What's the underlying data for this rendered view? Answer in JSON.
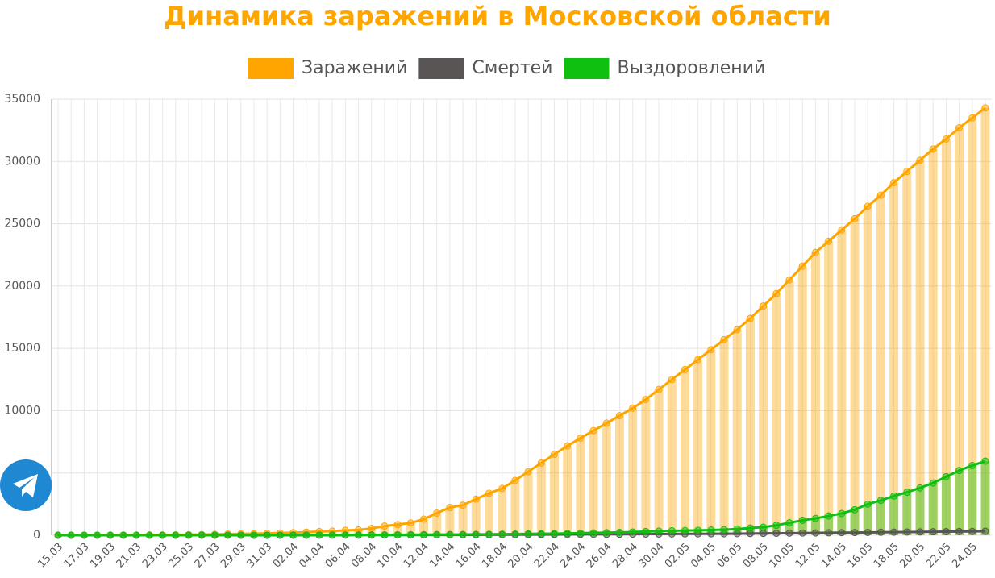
{
  "chart_data": {
    "type": "line",
    "title": "Динамика заражений в Московской области",
    "categories": [
      "15.03",
      null,
      "17.03",
      null,
      "19.03",
      null,
      "21.03",
      null,
      "23.03",
      null,
      "25.03",
      null,
      "27.03",
      null,
      "29.03",
      null,
      "31.03",
      null,
      "02.04",
      null,
      "04.04",
      null,
      "06.04",
      null,
      "08.04",
      null,
      "10.04",
      null,
      "12.04",
      null,
      "14.04",
      null,
      "16.04",
      null,
      "18.04",
      null,
      "20.04",
      null,
      "22.04",
      null,
      "24.04",
      null,
      "26.04",
      null,
      "28.04",
      null,
      "30.04",
      null,
      "02.05",
      null,
      "04.05",
      null,
      "06.05",
      null,
      "08.05",
      null,
      "10.05",
      null,
      "12.05",
      null,
      "14.05",
      null,
      "16.05",
      null,
      "18.05",
      null,
      "20.05",
      null,
      "22.05",
      null,
      "24.05",
      null
    ],
    "series": [
      {
        "name": "Заражений",
        "color": "#ffa500",
        "bars": true,
        "values": [
          5,
          7,
          10,
          12,
          15,
          18,
          20,
          24,
          26,
          35,
          45,
          60,
          75,
          95,
          110,
          130,
          150,
          180,
          210,
          250,
          300,
          330,
          400,
          430,
          550,
          740,
          860,
          990,
          1290,
          1780,
          2230,
          2420,
          2900,
          3370,
          3760,
          4400,
          5100,
          5800,
          6500,
          7170,
          7800,
          8400,
          9000,
          9600,
          10200,
          10900,
          11700,
          12500,
          13300,
          14100,
          14900,
          15700,
          16500,
          17400,
          18400,
          19400,
          20500,
          21600,
          22700,
          23600,
          24500,
          25400,
          26400,
          27300,
          28300,
          29200,
          30100,
          31000,
          31800,
          32700,
          33500,
          34300
        ]
      },
      {
        "name": "Смертей",
        "color": "#5a5555",
        "bars": false,
        "values": [
          0,
          0,
          0,
          0,
          0,
          0,
          0,
          0,
          0,
          1,
          1,
          1,
          2,
          2,
          2,
          3,
          4,
          5,
          5,
          6,
          7,
          9,
          10,
          12,
          14,
          16,
          18,
          20,
          22,
          25,
          28,
          30,
          34,
          38,
          42,
          46,
          50,
          55,
          60,
          65,
          70,
          75,
          80,
          85,
          90,
          95,
          100,
          105,
          110,
          115,
          120,
          125,
          130,
          140,
          150,
          160,
          170,
          180,
          190,
          200,
          210,
          220,
          230,
          240,
          250,
          260,
          270,
          280,
          290,
          300,
          310,
          320
        ]
      },
      {
        "name": "Выздоровлений",
        "color": "#10c010",
        "bars": true,
        "values": [
          0,
          0,
          0,
          0,
          0,
          0,
          0,
          0,
          0,
          1,
          1,
          2,
          3,
          3,
          5,
          5,
          6,
          8,
          10,
          12,
          15,
          18,
          20,
          25,
          30,
          35,
          40,
          45,
          50,
          55,
          60,
          65,
          70,
          80,
          90,
          100,
          110,
          120,
          130,
          150,
          170,
          190,
          210,
          230,
          260,
          300,
          330,
          360,
          380,
          400,
          420,
          450,
          500,
          580,
          650,
          800,
          1000,
          1200,
          1350,
          1550,
          1750,
          2050,
          2500,
          2800,
          3150,
          3450,
          3800,
          4200,
          4700,
          5200,
          5600,
          5950
        ]
      }
    ],
    "ylim": [
      0,
      35000
    ],
    "yticks": [
      0,
      5000,
      10000,
      15000,
      20000,
      25000,
      30000,
      35000
    ],
    "grid": true
  }
}
